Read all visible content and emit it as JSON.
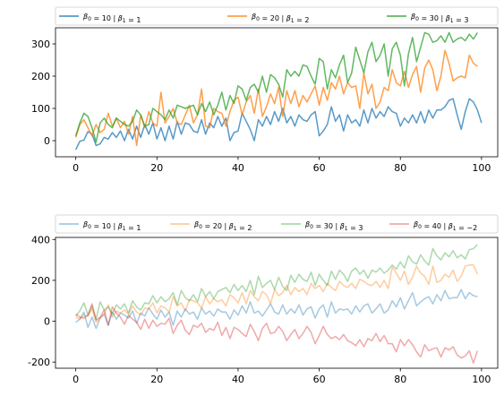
{
  "chart_data": [
    {
      "type": "line",
      "title": "",
      "xlabel": "",
      "ylabel": "",
      "xlim": [
        -5,
        104
      ],
      "ylim": [
        -50,
        350
      ],
      "xticks": [
        0,
        20,
        40,
        60,
        80,
        100
      ],
      "yticks": [
        0,
        100,
        200,
        300
      ],
      "grid": false,
      "legend_position": "above-center",
      "legend_columns": 3,
      "line_alpha": 0.75,
      "x_start": 0,
      "series": [
        {
          "name": "β0 = 10 | β1 = 1",
          "label_parts": [
            "β",
            "0",
            " = 10 | ",
            "β",
            "1",
            " = 1"
          ],
          "color": "#1f77b4",
          "values": [
            -28,
            -2,
            2,
            28,
            20,
            -15,
            -10,
            10,
            5,
            25,
            10,
            30,
            0,
            35,
            5,
            45,
            10,
            50,
            20,
            55,
            5,
            40,
            0,
            45,
            5,
            60,
            20,
            55,
            50,
            30,
            25,
            65,
            20,
            55,
            40,
            75,
            45,
            70,
            0,
            25,
            30,
            85,
            60,
            35,
            0,
            65,
            45,
            75,
            50,
            90,
            60,
            100,
            55,
            75,
            45,
            80,
            65,
            60,
            80,
            90,
            15,
            30,
            50,
            105,
            60,
            80,
            30,
            80,
            55,
            65,
            45,
            95,
            55,
            100,
            70,
            90,
            75,
            105,
            90,
            85,
            45,
            70,
            55,
            80,
            55,
            90,
            55,
            95,
            70,
            95,
            95,
            105,
            125,
            130,
            80,
            35,
            90,
            130,
            120,
            95,
            55
          ]
        },
        {
          "name": "β0 = 20 | β1 = 2",
          "label_parts": [
            "β",
            "0",
            " = 20 | ",
            "β",
            "1",
            " = 2"
          ],
          "color": "#ff7f0e",
          "values": [
            10,
            50,
            65,
            40,
            15,
            50,
            25,
            35,
            85,
            45,
            70,
            40,
            60,
            20,
            75,
            -15,
            80,
            40,
            90,
            55,
            45,
            150,
            55,
            75,
            100,
            55,
            50,
            80,
            110,
            55,
            80,
            160,
            45,
            40,
            100,
            90,
            85,
            45,
            90,
            125,
            135,
            80,
            120,
            140,
            85,
            160,
            75,
            105,
            145,
            115,
            165,
            75,
            155,
            115,
            155,
            105,
            140,
            120,
            145,
            170,
            110,
            165,
            125,
            180,
            160,
            200,
            145,
            180,
            165,
            170,
            100,
            210,
            145,
            175,
            100,
            120,
            165,
            155,
            220,
            180,
            170,
            215,
            165,
            205,
            230,
            150,
            225,
            250,
            220,
            155,
            200,
            280,
            240,
            185,
            195,
            200,
            195,
            265,
            240,
            230
          ]
        },
        {
          "name": "β0 = 30 | β1 = 3",
          "label_parts": [
            "β",
            "0",
            " = 30 | ",
            "β",
            "1",
            " = 3"
          ],
          "color": "#2ca02c",
          "values": [
            15,
            55,
            85,
            75,
            40,
            -5,
            55,
            70,
            50,
            40,
            70,
            60,
            50,
            45,
            60,
            95,
            80,
            45,
            50,
            100,
            90,
            80,
            65,
            95,
            70,
            110,
            105,
            100,
            105,
            110,
            80,
            115,
            90,
            120,
            80,
            110,
            150,
            95,
            140,
            115,
            170,
            160,
            125,
            165,
            175,
            150,
            200,
            150,
            205,
            195,
            175,
            135,
            220,
            200,
            215,
            200,
            235,
            230,
            200,
            175,
            255,
            245,
            160,
            220,
            195,
            235,
            265,
            180,
            210,
            290,
            250,
            210,
            275,
            305,
            245,
            265,
            300,
            200,
            285,
            305,
            265,
            170,
            270,
            320,
            245,
            290,
            335,
            330,
            305,
            310,
            325,
            305,
            335,
            305,
            315,
            320,
            310,
            330,
            315,
            335
          ]
        }
      ]
    },
    {
      "type": "line",
      "title": "",
      "xlabel": "",
      "ylabel": "",
      "xlim": [
        -5,
        104
      ],
      "ylim": [
        -230,
        410
      ],
      "xticks": [
        0,
        20,
        40,
        60,
        80,
        100
      ],
      "yticks": [
        -200,
        0,
        200,
        400
      ],
      "grid": false,
      "legend_position": "above-center",
      "legend_columns": 4,
      "line_alpha": 0.4,
      "x_start": 0,
      "series": [
        {
          "name": "β0 = 10 | β1 = 1",
          "label_parts": [
            "β",
            "0",
            " = 10 | ",
            "β",
            "1",
            " = 1"
          ],
          "color": "#1f77b4",
          "values": [
            -5,
            10,
            45,
            -30,
            20,
            -35,
            15,
            35,
            -20,
            45,
            10,
            40,
            30,
            15,
            50,
            -10,
            40,
            25,
            65,
            35,
            10,
            55,
            20,
            45,
            -20,
            50,
            20,
            60,
            35,
            45,
            10,
            65,
            35,
            50,
            25,
            60,
            45,
            45,
            10,
            55,
            30,
            75,
            40,
            95,
            40,
            50,
            25,
            55,
            85,
            45,
            35,
            80,
            35,
            60,
            40,
            80,
            30,
            60,
            70,
            15,
            60,
            80,
            20,
            95,
            40,
            60,
            55,
            60,
            35,
            75,
            45,
            75,
            85,
            40,
            60,
            85,
            40,
            55,
            100,
            70,
            115,
            60,
            100,
            140,
            75,
            95,
            110,
            120,
            85,
            130,
            100,
            150,
            110,
            115,
            115,
            155,
            110,
            140,
            125,
            120
          ]
        },
        {
          "name": "β0 = 20 | β1 = 2",
          "label_parts": [
            "β",
            "0",
            " = 20 | ",
            "β",
            "1",
            " = 2"
          ],
          "color": "#ff7f0e",
          "values": [
            20,
            10,
            30,
            25,
            60,
            -5,
            15,
            35,
            80,
            20,
            50,
            40,
            55,
            35,
            75,
            45,
            30,
            65,
            60,
            90,
            40,
            75,
            65,
            45,
            120,
            75,
            90,
            50,
            105,
            100,
            90,
            65,
            120,
            85,
            110,
            95,
            105,
            75,
            130,
            115,
            90,
            140,
            85,
            150,
            120,
            100,
            145,
            130,
            85,
            155,
            125,
            140,
            175,
            130,
            165,
            145,
            160,
            130,
            185,
            160,
            175,
            145,
            185,
            165,
            150,
            195,
            175,
            165,
            185,
            160,
            205,
            195,
            180,
            175,
            195,
            165,
            200,
            160,
            265,
            235,
            200,
            245,
            180,
            215,
            270,
            235,
            220,
            180,
            270,
            190,
            200,
            230,
            215,
            250,
            195,
            220,
            270,
            275,
            275,
            230
          ]
        },
        {
          "name": "β0 = 30 | β1 = 3",
          "label_parts": [
            "β",
            "0",
            " = 30 | ",
            "β",
            "1",
            " = 3"
          ],
          "color": "#2ca02c",
          "values": [
            25,
            50,
            90,
            30,
            75,
            10,
            95,
            55,
            70,
            35,
            80,
            60,
            85,
            40,
            100,
            70,
            55,
            90,
            85,
            125,
            90,
            120,
            95,
            110,
            140,
            80,
            150,
            115,
            100,
            130,
            95,
            160,
            120,
            145,
            110,
            145,
            155,
            165,
            140,
            180,
            150,
            175,
            145,
            200,
            130,
            220,
            165,
            185,
            200,
            155,
            215,
            170,
            150,
            225,
            190,
            230,
            205,
            195,
            240,
            175,
            230,
            200,
            175,
            245,
            205,
            250,
            230,
            195,
            245,
            260,
            230,
            250,
            210,
            250,
            240,
            260,
            235,
            250,
            275,
            255,
            290,
            260,
            320,
            290,
            280,
            325,
            295,
            275,
            355,
            320,
            300,
            335,
            315,
            345,
            310,
            325,
            305,
            350,
            355,
            375
          ]
        },
        {
          "name": "β0 = 40 | β1 = −2",
          "label_parts": [
            "β",
            "0",
            " = 40 | ",
            "β",
            "1",
            " = −2"
          ],
          "color": "#d62728",
          "values": [
            35,
            20,
            15,
            30,
            85,
            5,
            20,
            55,
            -20,
            70,
            40,
            20,
            -15,
            30,
            10,
            -5,
            -40,
            10,
            -35,
            5,
            -25,
            -10,
            -15,
            15,
            -60,
            -20,
            5,
            -45,
            -65,
            -20,
            -30,
            -10,
            -55,
            -35,
            -45,
            -5,
            -70,
            -30,
            -85,
            -30,
            -40,
            -60,
            -75,
            -15,
            -50,
            -95,
            -35,
            -10,
            -60,
            -55,
            -25,
            -50,
            -95,
            -65,
            -40,
            -85,
            -60,
            -25,
            -55,
            -110,
            -70,
            -25,
            -65,
            -85,
            -75,
            -90,
            -65,
            -95,
            -105,
            -120,
            -90,
            -125,
            -85,
            -95,
            -60,
            -100,
            -70,
            -110,
            -110,
            -150,
            -90,
            -120,
            -90,
            -115,
            -150,
            -175,
            -115,
            -145,
            -135,
            -130,
            -175,
            -130,
            -140,
            -125,
            -165,
            -180,
            -170,
            -145,
            -205,
            -145
          ]
        }
      ]
    }
  ]
}
